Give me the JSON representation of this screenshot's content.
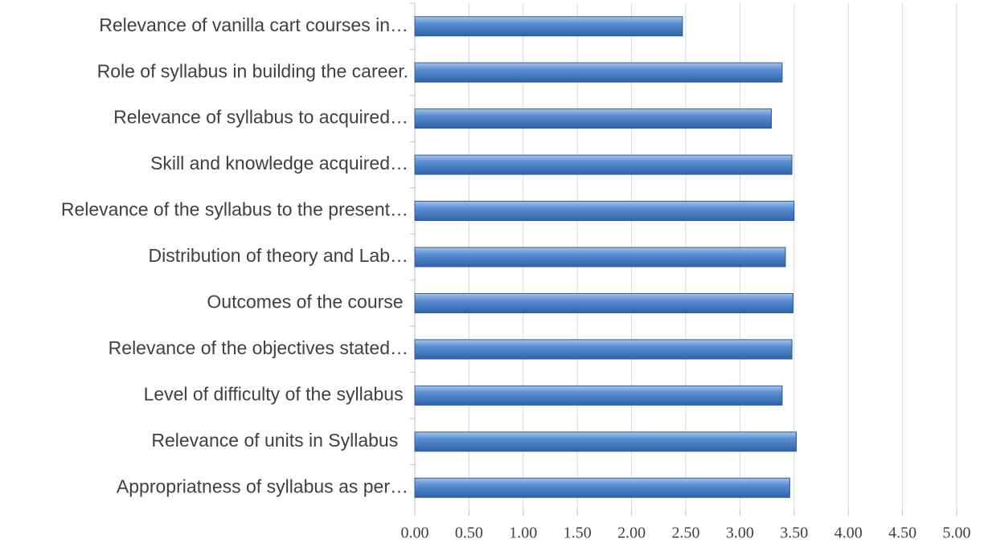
{
  "chart_data": {
    "type": "bar",
    "orientation": "horizontal",
    "categories": [
      "Relevance of vanilla cart courses in…",
      "Role of syllabus in building the career.",
      "Relevance of syllabus to acquired…",
      "Skill and knowledge acquired…",
      "Relevance of the syllabus to the present…",
      "Distribution of theory and Lab…",
      "Outcomes of the course ",
      "Relevance of the objectives stated…",
      "Level of difficulty of the syllabus ",
      "Relevance of units in Syllabus  ",
      "Appropriatness of syllabus as per…"
    ],
    "values": [
      2.47,
      3.39,
      3.29,
      3.48,
      3.5,
      3.42,
      3.49,
      3.48,
      3.39,
      3.52,
      3.46
    ],
    "color": "#4f81bd",
    "xlim": [
      0,
      5
    ],
    "xticks": [
      {
        "value": 0,
        "label": "0.00"
      },
      {
        "value": 0.5,
        "label": "0.50"
      },
      {
        "value": 1,
        "label": "1.00"
      },
      {
        "value": 1.5,
        "label": "1.50"
      },
      {
        "value": 2,
        "label": "2.00"
      },
      {
        "value": 2.5,
        "label": "2.50"
      },
      {
        "value": 3,
        "label": "3.00"
      },
      {
        "value": 3.5,
        "label": "3.50"
      },
      {
        "value": 4,
        "label": "4.00"
      },
      {
        "value": 4.5,
        "label": "4.50"
      },
      {
        "value": 5,
        "label": "5.00"
      }
    ],
    "grid": true
  }
}
